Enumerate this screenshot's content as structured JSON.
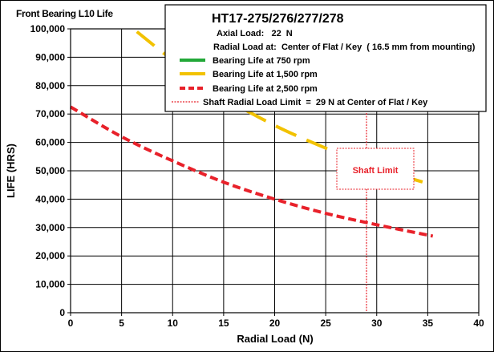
{
  "chart_data": {
    "type": "line",
    "corner_title": "Front Bearing L10 Life",
    "xlabel": "Radial Load (N)",
    "ylabel": "LIFE (HRS)",
    "xlim": [
      0,
      40
    ],
    "ylim": [
      0,
      100000
    ],
    "x_ticks": [
      0,
      5,
      10,
      15,
      20,
      25,
      30,
      35,
      40
    ],
    "y_ticks": [
      0,
      10000,
      20000,
      30000,
      40000,
      50000,
      60000,
      70000,
      80000,
      90000,
      100000
    ],
    "x_tick_labels": [
      "0",
      "5",
      "10",
      "15",
      "20",
      "25",
      "30",
      "35",
      "40"
    ],
    "y_tick_labels": [
      "0",
      "10,000",
      "20,000",
      "30,000",
      "40,000",
      "50,000",
      "60,000",
      "70,000",
      "80,000",
      "90,000",
      "100,000"
    ],
    "grid": true,
    "info": {
      "model": "HT17-275/276/277/278",
      "axial_load": "Axial Load:   22  N",
      "radial_at": "Radial Load at:  Center of Flat / Key  ( 16.5 mm from mounting)"
    },
    "legend_position": "top-right",
    "series": [
      {
        "name": "Bearing Life at 750 rpm",
        "color": "#22a838",
        "dash": "solid",
        "x": [],
        "y": []
      },
      {
        "name": "Bearing Life at 1,500 rpm",
        "color": "#f2c200",
        "dash": "longdash",
        "x": [
          6.5,
          10,
          15,
          20,
          25,
          30,
          35.5
        ],
        "y": [
          99000,
          89000,
          76000,
          66000,
          58000,
          51000,
          45000
        ]
      },
      {
        "name": "Bearing Life at 2,500 rpm",
        "color": "#e8212a",
        "dash": "dash",
        "x": [
          0,
          5,
          10,
          15,
          20,
          25,
          30,
          35.5
        ],
        "y": [
          72500,
          62000,
          53500,
          46000,
          40000,
          35000,
          31000,
          27000
        ]
      }
    ],
    "limit_line": {
      "name": "Shaft Radial Load Limit  =  29 N at Center of Flat / Key",
      "x": 29,
      "color": "#e8212a",
      "label": "Shaft Limit"
    }
  }
}
